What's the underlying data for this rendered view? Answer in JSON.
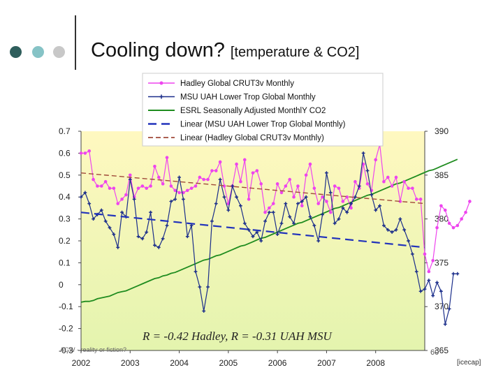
{
  "slide": {
    "title": "Cooling down?",
    "subtitle": "[temperature & CO2]",
    "footer": "AGW - reality or fiction?",
    "page_number": "60",
    "credit": "[icecap]",
    "dot_colors": [
      "#2f5e5c",
      "#86c3c6",
      "#c8c8c8"
    ]
  },
  "chart_data": {
    "type": "line",
    "title": "",
    "annotation": "R = -0.42 Hadley,  R = -0.31 UAH MSU",
    "x_tick_labels": [
      "2002",
      "2003",
      "2004",
      "2005",
      "2006",
      "2007",
      "2008"
    ],
    "x_range": [
      2002.0,
      2009.0
    ],
    "y_left": {
      "range": [
        -0.3,
        0.7
      ],
      "tick_labels": [
        "0.7",
        "0.6",
        "0.5",
        "0.4",
        "0.3",
        "0.2",
        "0.1",
        "0",
        "-0.1",
        "-0.2",
        "-0.3"
      ]
    },
    "y_right": {
      "range": [
        365,
        390
      ],
      "tick_labels": [
        "390",
        "385",
        "380",
        "375",
        "370",
        "365"
      ]
    },
    "colors": {
      "hadley": "#ee44ee",
      "uah": "#1a2d8a",
      "co2": "#1f8c1f",
      "trend_uah": "#2233bb",
      "trend_hadley": "#a04a3a",
      "plot_top": "#fff8c0",
      "plot_bottom": "#e4f4ae"
    },
    "series": [
      {
        "name": "Hadley Global CRUT3v Monthly",
        "axis": "left",
        "x_start": 2002.0,
        "x_step": 0.08333,
        "values": [
          0.6,
          0.6,
          0.61,
          0.48,
          0.45,
          0.45,
          0.47,
          0.44,
          0.44,
          0.37,
          0.39,
          0.41,
          0.5,
          0.4,
          0.44,
          0.45,
          0.44,
          0.45,
          0.54,
          0.49,
          0.46,
          0.58,
          0.45,
          0.43,
          0.42,
          0.42,
          0.43,
          0.44,
          0.45,
          0.49,
          0.48,
          0.48,
          0.52,
          0.52,
          0.56,
          0.45,
          0.37,
          0.45,
          0.55,
          0.47,
          0.57,
          0.39,
          0.51,
          0.52,
          0.46,
          0.33,
          0.35,
          0.37,
          0.46,
          0.42,
          0.45,
          0.48,
          0.4,
          0.45,
          0.36,
          0.5,
          0.55,
          0.44,
          0.37,
          0.4,
          0.38,
          0.33,
          0.45,
          0.44,
          0.38,
          0.4,
          0.35,
          0.47,
          0.44,
          0.55,
          0.46,
          0.43,
          0.57,
          0.64,
          0.47,
          0.49,
          0.45,
          0.49,
          0.38,
          0.47,
          0.44,
          0.44,
          0.39,
          0.39,
          0.14,
          0.06,
          0.11,
          0.26,
          0.36,
          0.34,
          0.28,
          0.26,
          0.27,
          0.3,
          0.33,
          0.38
        ],
        "marker": "circle"
      },
      {
        "name": "MSU UAH Lower Trop Global Monthly",
        "axis": "left",
        "x_start": 2002.0,
        "x_step": 0.08333,
        "values": [
          0.4,
          0.42,
          0.37,
          0.3,
          0.32,
          0.34,
          0.29,
          0.26,
          0.23,
          0.17,
          0.33,
          0.31,
          0.48,
          0.39,
          0.22,
          0.21,
          0.24,
          0.33,
          0.18,
          0.17,
          0.21,
          0.27,
          0.38,
          0.39,
          0.49,
          0.39,
          0.22,
          0.27,
          0.06,
          -0.01,
          -0.12,
          -0.01,
          0.29,
          0.37,
          0.48,
          0.4,
          0.34,
          0.45,
          0.4,
          0.36,
          0.28,
          0.25,
          0.22,
          0.24,
          0.2,
          0.29,
          0.33,
          0.33,
          0.23,
          0.28,
          0.37,
          0.31,
          0.28,
          0.37,
          0.38,
          0.4,
          0.31,
          0.27,
          0.2,
          0.32,
          0.51,
          0.42,
          0.28,
          0.3,
          0.35,
          0.33,
          0.37,
          0.4,
          0.45,
          0.6,
          0.52,
          0.41,
          0.34,
          0.36,
          0.27,
          0.25,
          0.24,
          0.25,
          0.3,
          0.25,
          0.2,
          0.14,
          0.06,
          -0.03,
          -0.02,
          0.02,
          -0.05,
          0.01,
          -0.03,
          -0.18,
          -0.11,
          0.05,
          0.05
        ],
        "marker": "star"
      },
      {
        "name": "ESRL Seasonally Adjusted MonthlY CO2",
        "axis": "right",
        "x_start": 2002.0,
        "x_step": 0.08333,
        "values": [
          370.5,
          370.6,
          370.6,
          370.7,
          370.9,
          371.0,
          371.1,
          371.2,
          371.4,
          371.6,
          371.7,
          371.8,
          372.0,
          372.2,
          372.4,
          372.6,
          372.8,
          373.0,
          373.2,
          373.3,
          373.5,
          373.6,
          373.8,
          373.9,
          374.1,
          374.3,
          374.5,
          374.7,
          374.9,
          375.1,
          375.3,
          375.4,
          375.6,
          375.8,
          375.9,
          376.1,
          376.3,
          376.5,
          376.7,
          376.9,
          377.0,
          377.2,
          377.4,
          377.6,
          377.8,
          377.9,
          378.1,
          378.3,
          378.5,
          378.7,
          378.9,
          379.1,
          379.3,
          379.5,
          379.6,
          379.8,
          380.0,
          380.2,
          380.4,
          380.6,
          380.8,
          381.0,
          381.2,
          381.3,
          381.5,
          381.7,
          381.9,
          382.1,
          382.3,
          382.5,
          382.7,
          382.8,
          383.0,
          383.2,
          383.4,
          383.6,
          383.8,
          384.0,
          384.1,
          384.3,
          384.5,
          384.7,
          384.9,
          385.1,
          385.3,
          385.5,
          385.6,
          385.8,
          386.0,
          386.2,
          386.4,
          386.6,
          386.8
        ],
        "marker": "none"
      },
      {
        "name": "Linear (MSU UAH Lower Trop Global Monthly)",
        "axis": "left",
        "type": "trend",
        "x": [
          2002.0,
          2009.0
        ],
        "values": [
          0.33,
          0.17
        ],
        "dash": "long"
      },
      {
        "name": "Linear (Hadley Global CRUT3v Monthly)",
        "axis": "left",
        "type": "trend",
        "x": [
          2002.0,
          2009.0
        ],
        "values": [
          0.51,
          0.37
        ],
        "dash": "short"
      }
    ]
  }
}
